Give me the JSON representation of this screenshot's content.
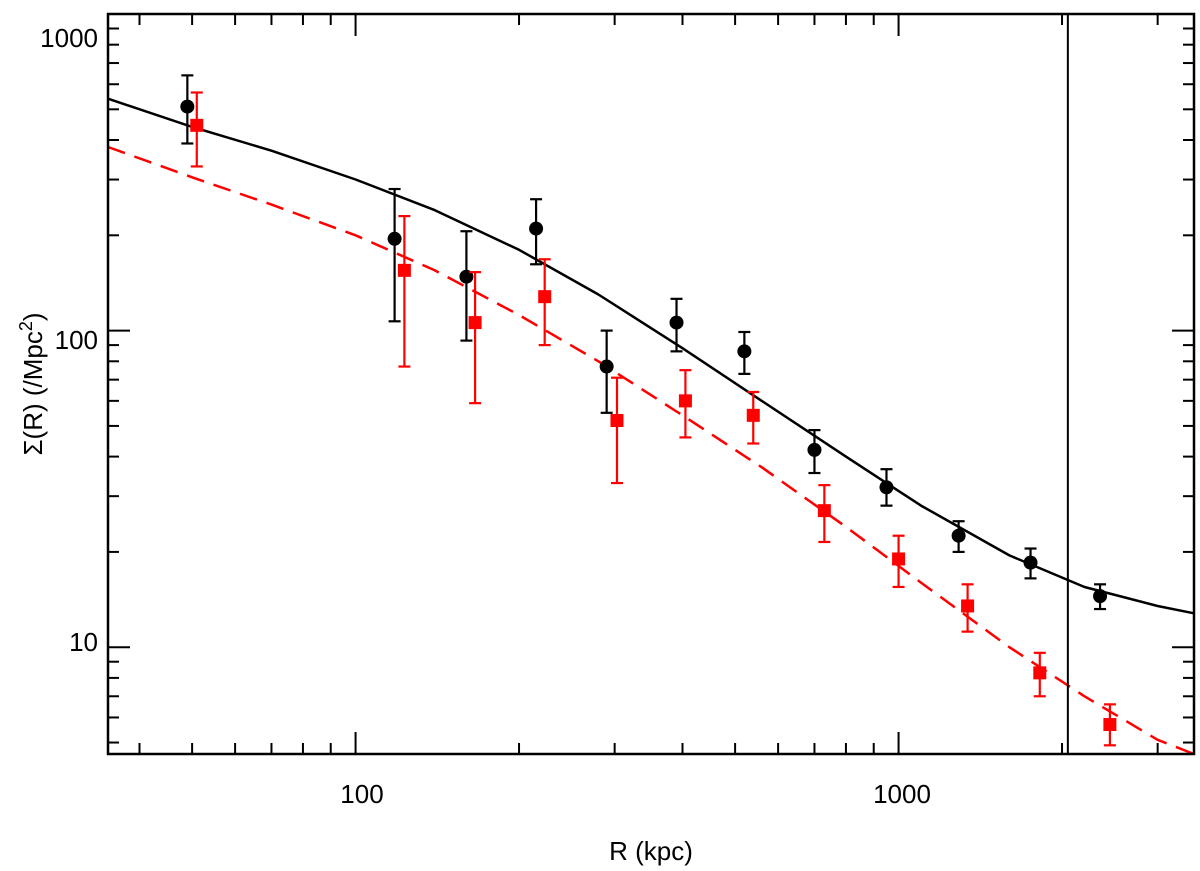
{
  "chart_data": {
    "type": "scatter",
    "title": "",
    "xlabel": "R (kpc)",
    "ylabel_main": "Σ(R) (/Mpc",
    "ylabel_sup": "2",
    "ylabel_close": ")",
    "xscale": "log",
    "yscale": "log",
    "xlim": [
      35,
      3500
    ],
    "ylim": [
      4.6,
      1000
    ],
    "x_tick_labels": [
      "100",
      "1000"
    ],
    "y_tick_labels": [
      "10",
      "100",
      "1000"
    ],
    "vertical_line_x": 2050,
    "series": [
      {
        "name": "black points",
        "marker": "circle",
        "color": "#000000",
        "x": [
          49,
          118,
          160,
          215,
          290,
          390,
          520,
          700,
          950,
          1290,
          1750,
          2350
        ],
        "y": [
          510,
          195,
          148,
          210,
          77,
          106,
          86,
          42,
          32,
          22.5,
          18.5,
          14.5
        ],
        "err_low": [
          120,
          88,
          55,
          48,
          22,
          20,
          13,
          6.5,
          4,
          2.5,
          2,
          1.3
        ],
        "err_high": [
          130,
          85,
          58,
          50,
          23,
          20,
          13,
          6.5,
          4.5,
          2.5,
          2,
          1.3
        ]
      },
      {
        "name": "red points",
        "marker": "square",
        "color": "#ff0000",
        "x": [
          51,
          123,
          166,
          223,
          303,
          405,
          540,
          730,
          1000,
          1340,
          1820,
          2450
        ],
        "y": [
          445,
          155,
          106,
          128,
          52,
          60,
          54,
          27,
          19,
          13.5,
          8.3,
          5.7
        ],
        "err_low": [
          115,
          78,
          47,
          38,
          19,
          14,
          10,
          5.5,
          3.5,
          2.3,
          1.3,
          0.8
        ],
        "err_high": [
          120,
          75,
          47,
          40,
          19,
          15,
          10,
          5.5,
          3.5,
          2.3,
          1.3,
          0.9
        ]
      }
    ],
    "curves": [
      {
        "name": "black model",
        "style": "solid",
        "color": "#000000",
        "x": [
          35,
          50,
          70,
          100,
          140,
          200,
          280,
          400,
          560,
          800,
          1100,
          1600,
          2200,
          3000,
          3500
        ],
        "y": [
          540,
          440,
          370,
          300,
          240,
          180,
          130,
          88,
          60,
          40,
          28,
          19.5,
          15.5,
          13.5,
          12.8
        ]
      },
      {
        "name": "red model",
        "style": "dashed",
        "color": "#ff0000",
        "x": [
          35,
          50,
          70,
          100,
          140,
          200,
          280,
          400,
          560,
          800,
          1100,
          1600,
          2200,
          3000,
          3500
        ],
        "y": [
          380,
          305,
          250,
          200,
          155,
          112,
          80,
          54,
          37,
          24,
          16,
          10,
          7,
          5.1,
          4.6
        ]
      }
    ]
  }
}
